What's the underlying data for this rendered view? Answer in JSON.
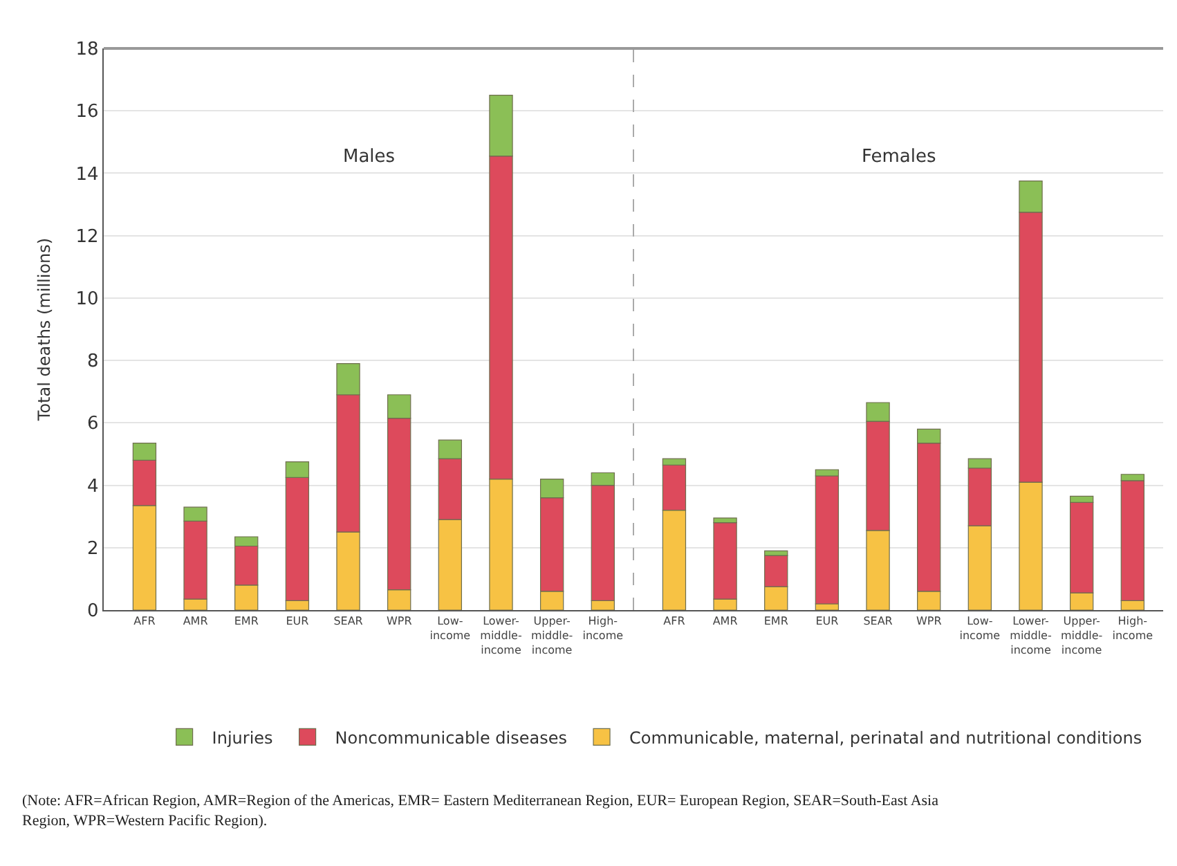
{
  "chart_data": [
    {
      "type": "bar",
      "stacked": true,
      "ylabel": "Total deaths (millions)",
      "annotations": [
        "Males",
        "(Note: AFR=African Region, AMR=Region of the Americas, EMR= Eastern Mediterranean Region, EUR= European Region, SEAR=South-East Asia Region, WPR=Western Pacific Region)."
      ],
      "categories": [
        "AFR",
        "AMR",
        "EMR",
        "EUR",
        "SEAR",
        "WPR",
        "Low-income",
        "Lower-middle-income",
        "Upper-middle-income",
        "High-income"
      ],
      "ylim": [
        0,
        18
      ],
      "yticks": [
        0,
        2,
        4,
        6,
        8,
        10,
        12,
        14,
        16,
        18
      ],
      "grid": "y",
      "legend": "bottom",
      "series": [
        {
          "name": "Communicable, maternal, perinatal and nutritional conditions",
          "color": "#f7c244",
          "values": [
            3.35,
            0.35,
            0.8,
            0.3,
            2.5,
            0.65,
            2.9,
            4.2,
            0.6,
            0.3
          ]
        },
        {
          "name": "Noncommunicable diseases",
          "color": "#dd4a5c",
          "values": [
            1.45,
            2.5,
            1.25,
            3.95,
            4.4,
            5.5,
            1.95,
            10.35,
            3.0,
            3.7
          ]
        },
        {
          "name": "Injuries",
          "color": "#8bbf56",
          "values": [
            0.55,
            0.45,
            0.3,
            0.5,
            1.0,
            0.75,
            0.6,
            1.95,
            0.6,
            0.4
          ]
        }
      ]
    },
    {
      "type": "bar",
      "stacked": true,
      "annotations": [
        "Females"
      ],
      "categories": [
        "AFR",
        "AMR",
        "EMR",
        "EUR",
        "SEAR",
        "WPR",
        "Low-income",
        "Lower-middle-income",
        "Upper-middle-income",
        "High-income"
      ],
      "ylim": [
        0,
        18
      ],
      "yticks": [
        0,
        2,
        4,
        6,
        8,
        10,
        12,
        14,
        16,
        18
      ],
      "grid": "y",
      "tick_labels": "x",
      "series": [
        {
          "color": "#f7c244",
          "values": [
            3.2,
            0.35,
            0.75,
            0.2,
            2.55,
            0.6,
            2.7,
            4.1,
            0.55,
            0.3
          ]
        },
        {
          "color": "#dd4a5c",
          "values": [
            1.45,
            2.45,
            1.0,
            4.1,
            3.5,
            4.75,
            1.85,
            8.65,
            2.9,
            3.85
          ]
        },
        {
          "color": "#8bbf56",
          "values": [
            0.2,
            0.15,
            0.15,
            0.2,
            0.6,
            0.45,
            0.3,
            1.0,
            0.2,
            0.2
          ]
        }
      ]
    }
  ]
}
